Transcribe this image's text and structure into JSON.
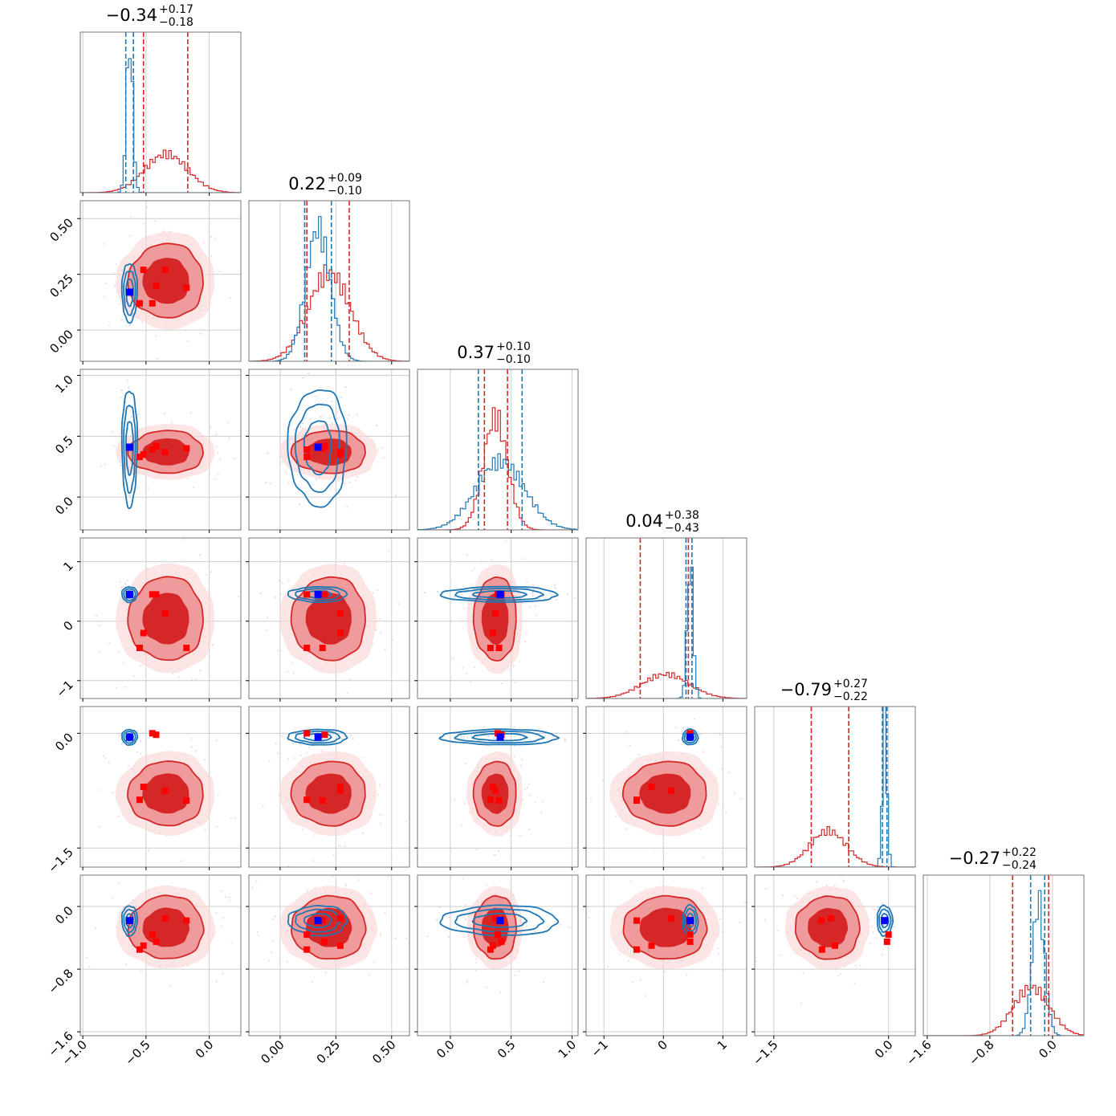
{
  "colors": {
    "red": "#d62728",
    "red_fill_inner": "#d62728",
    "red_fill_outer": "#ef9a9b",
    "red_fill_light": "#f8d3d4",
    "blue": "#1f77b4",
    "blue_marker": "#0000ff",
    "red_marker": "#ff0000",
    "grid": "#cccccc",
    "frame": "#777777"
  },
  "chart_data": {
    "type": "corner",
    "n_params": 6,
    "grid": true,
    "titles": [
      {
        "value": "−0.34",
        "plus": "+0.17",
        "minus": "−0.18"
      },
      {
        "value": "0.22",
        "plus": "+0.09",
        "minus": "−0.10"
      },
      {
        "value": "0.37",
        "plus": "+0.10",
        "minus": "−0.10"
      },
      {
        "value": "0.04",
        "plus": "+0.38",
        "minus": "−0.43"
      },
      {
        "value": "−0.79",
        "plus": "+0.27",
        "minus": "−0.22"
      },
      {
        "value": "−0.27",
        "plus": "+0.22",
        "minus": "−0.24"
      }
    ],
    "ranges": [
      [
        -1.02,
        0.25
      ],
      [
        -0.14,
        0.58
      ],
      [
        -0.27,
        1.05
      ],
      [
        -1.3,
        1.4
      ],
      [
        -1.75,
        0.35
      ],
      [
        -1.65,
        0.4
      ]
    ],
    "ticks": [
      {
        "values": [
          -1.0,
          -0.5,
          0.0
        ],
        "labels": [
          "−1.0",
          "−0.5",
          "0.0"
        ]
      },
      {
        "values": [
          0.0,
          0.25,
          0.5
        ],
        "labels": [
          "0.00",
          "0.25",
          "0.50"
        ]
      },
      {
        "values": [
          0.0,
          0.5,
          1.0
        ],
        "labels": [
          "0.0",
          "0.5",
          "1.0"
        ]
      },
      {
        "values": [
          -1,
          0,
          1
        ],
        "labels": [
          "−1",
          "0",
          "1"
        ]
      },
      {
        "values": [
          -1.5,
          0.0
        ],
        "labels": [
          "−1.5",
          "0.0"
        ]
      },
      {
        "values": [
          -1.6,
          -0.8,
          0.0
        ],
        "labels": [
          "−1.6",
          "−0.8",
          "0.0"
        ]
      }
    ],
    "red_posterior": {
      "means": [
        -0.34,
        0.22,
        0.37,
        0.04,
        -0.79,
        -0.27
      ],
      "sds": [
        0.17,
        0.095,
        0.1,
        0.4,
        0.24,
        0.23
      ],
      "quantiles": [
        [
          -0.52,
          -0.17
        ],
        [
          0.12,
          0.31
        ],
        [
          0.28,
          0.47
        ],
        [
          -0.39,
          0.42
        ],
        [
          -1.01,
          -0.52
        ],
        [
          -0.51,
          -0.05
        ]
      ]
    },
    "blue_posterior": {
      "means": [
        -0.63,
        0.17,
        0.41,
        0.45,
        -0.05,
        -0.18
      ],
      "sds": [
        0.025,
        0.055,
        0.2,
        0.05,
        0.03,
        0.08
      ],
      "quantiles": [
        [
          -0.66,
          -0.6
        ],
        [
          0.11,
          0.23
        ],
        [
          0.23,
          0.59
        ],
        [
          0.38,
          0.48
        ],
        [
          -0.08,
          -0.02
        ],
        [
          -0.28,
          -0.1
        ]
      ]
    },
    "red_markers": [
      [
        -0.52,
        0.27,
        0.35,
        -0.2,
        -0.7,
        -0.5
      ],
      [
        -0.45,
        0.12,
        0.39,
        0.45,
        0.0,
        -0.36
      ],
      [
        -0.35,
        0.27,
        0.37,
        0.13,
        -0.75,
        -0.15
      ],
      [
        -0.18,
        0.19,
        0.4,
        -0.45,
        -0.88,
        -0.18
      ],
      [
        -0.55,
        0.12,
        0.33,
        -0.45,
        -0.87,
        -0.55
      ],
      [
        -0.42,
        0.2,
        0.42,
        0.45,
        -0.02,
        -0.45
      ]
    ],
    "blue_marker": [
      -0.63,
      0.17,
      0.41,
      0.45,
      -0.05,
      -0.18
    ]
  }
}
